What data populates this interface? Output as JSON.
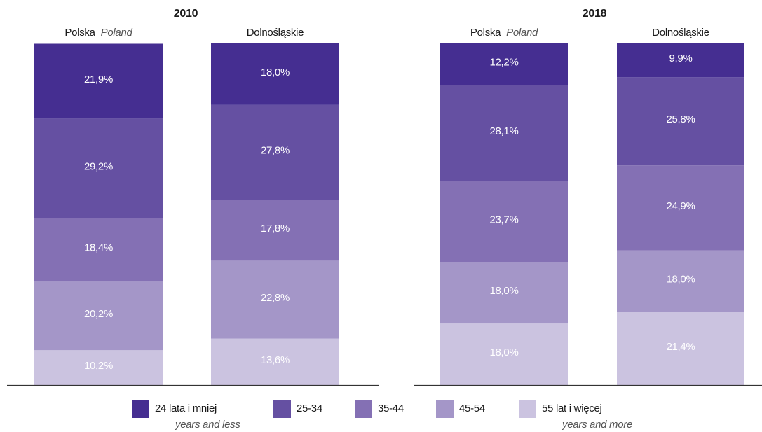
{
  "chart_data": {
    "type": "bar",
    "stacked": true,
    "ylim": [
      0,
      100
    ],
    "legend": [
      {
        "name": "24 lata i mniej",
        "name_translation": "years and less",
        "color": "#452e91"
      },
      {
        "name": "25-34",
        "color": "#6550a2"
      },
      {
        "name": "35-44",
        "color": "#8470b4"
      },
      {
        "name": "45-54",
        "color": "#a496c8"
      },
      {
        "name": "55 lat i więcej",
        "name_translation": "years and more",
        "color": "#cbc3e0"
      }
    ],
    "panels": [
      {
        "title": "2010",
        "categories": [
          "Polska",
          "Dolnośląskie"
        ],
        "category_translations": [
          "Poland",
          null
        ],
        "series": [
          {
            "values": [
              21.9,
              18.0
            ],
            "value_labels": [
              "21,9%",
              "18,0%"
            ]
          },
          {
            "values": [
              29.2,
              27.8
            ],
            "value_labels": [
              "29,2%",
              "27,8%"
            ]
          },
          {
            "values": [
              18.4,
              17.8
            ],
            "value_labels": [
              "18,4%",
              "17,8%"
            ]
          },
          {
            "values": [
              20.2,
              22.8
            ],
            "value_labels": [
              "20,2%",
              "22,8%"
            ]
          },
          {
            "values": [
              10.2,
              13.6
            ],
            "value_labels": [
              "10,2%",
              "13,6%"
            ]
          }
        ]
      },
      {
        "title": "2018",
        "categories": [
          "Polska",
          "Dolnośląskie"
        ],
        "category_translations": [
          "Poland",
          null
        ],
        "series": [
          {
            "values": [
              12.2,
              9.9
            ],
            "value_labels": [
              "12,2%",
              "9,9%"
            ]
          },
          {
            "values": [
              28.1,
              25.8
            ],
            "value_labels": [
              "28,1%",
              "25,8%"
            ]
          },
          {
            "values": [
              23.7,
              24.9
            ],
            "value_labels": [
              "23,7%",
              "24,9%"
            ]
          },
          {
            "values": [
              18.0,
              18.0
            ],
            "value_labels": [
              "18,0%",
              "18,0%"
            ]
          },
          {
            "values": [
              18.0,
              21.4
            ],
            "value_labels": [
              "18,0%",
              "21,4%"
            ]
          }
        ]
      }
    ]
  }
}
